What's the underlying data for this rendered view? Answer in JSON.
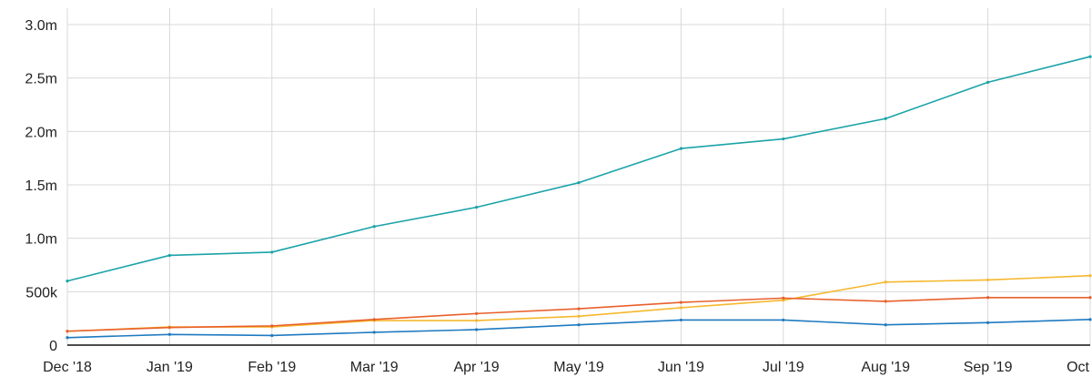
{
  "chart_data": {
    "type": "line",
    "categories": [
      "Dec '18",
      "Jan '19",
      "Feb '19",
      "Mar '19",
      "Apr '19",
      "May '19",
      "Jun '19",
      "Jul '19",
      "Aug '19",
      "Sep '19",
      "Oct"
    ],
    "y_ticks": [
      {
        "value": 0,
        "label": "0"
      },
      {
        "value": 500000,
        "label": "500k"
      },
      {
        "value": 1000000,
        "label": "1.0m"
      },
      {
        "value": 1500000,
        "label": "1.5m"
      },
      {
        "value": 2000000,
        "label": "2.0m"
      },
      {
        "value": 2500000,
        "label": "2.5m"
      },
      {
        "value": 3000000,
        "label": "3.0m"
      }
    ],
    "ylim": [
      0,
      3000000
    ],
    "grid": true,
    "legend": "none",
    "series": [
      {
        "color": "#1aa3a8",
        "values": [
          600000,
          840000,
          870000,
          1110000,
          1290000,
          1520000,
          1840000,
          1930000,
          2120000,
          2460000,
          2700000
        ]
      },
      {
        "color": "#f5b82e",
        "values": [
          130000,
          170000,
          170000,
          230000,
          230000,
          270000,
          350000,
          420000,
          590000,
          610000,
          650000
        ]
      },
      {
        "color": "#e8602c",
        "values": [
          130000,
          165000,
          180000,
          240000,
          295000,
          340000,
          400000,
          440000,
          410000,
          445000,
          445000
        ]
      },
      {
        "color": "#1f7ac0",
        "values": [
          70000,
          100000,
          90000,
          120000,
          145000,
          190000,
          235000,
          235000,
          190000,
          210000,
          240000
        ]
      }
    ]
  }
}
